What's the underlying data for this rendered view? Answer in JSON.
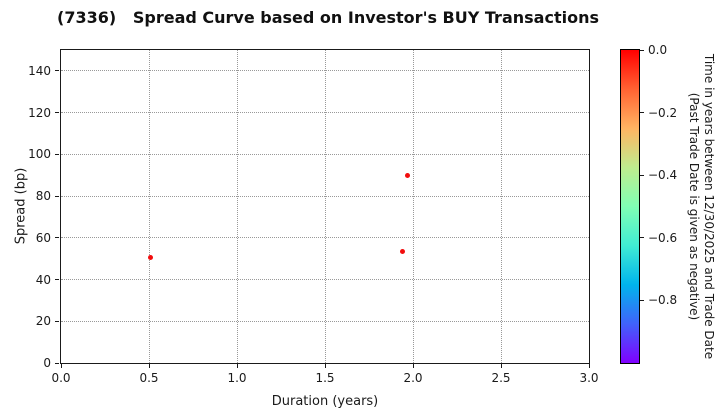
{
  "chart_data": {
    "type": "scatter",
    "title": "(7336)   Spread Curve based on Investor's BUY Transactions",
    "xlabel": "Duration (years)",
    "ylabel": "Spread (bp)",
    "xlim": [
      0.0,
      3.0
    ],
    "ylim": [
      0,
      150
    ],
    "grid": true,
    "legend_position": "none",
    "xticks": [
      0.0,
      0.5,
      1.0,
      1.5,
      2.0,
      2.5,
      3.0
    ],
    "xtick_labels": [
      "0.0",
      "0.5",
      "1.0",
      "1.5",
      "2.0",
      "2.5",
      "3.0"
    ],
    "yticks": [
      0,
      20,
      40,
      60,
      80,
      100,
      120,
      140
    ],
    "ytick_labels": [
      "0",
      "20",
      "40",
      "60",
      "80",
      "100",
      "120",
      "140"
    ],
    "points": [
      {
        "x": 0.51,
        "y": 50.5,
        "color_value": 0.0
      },
      {
        "x": 1.94,
        "y": 53.5,
        "color_value": 0.0
      },
      {
        "x": 1.97,
        "y": 90.0,
        "color_value": 0.0
      }
    ],
    "point_color": "#f20d0d",
    "colorbar": {
      "colormap": "rainbow",
      "range": [
        -1.0,
        0.0
      ],
      "ticks": [
        0.0,
        -0.2,
        -0.4,
        -0.6,
        -0.8
      ],
      "tick_labels": [
        "0.0",
        "−0.2",
        "−0.4",
        "−0.6",
        "−0.8"
      ],
      "label_line1": "Time in years between 12/30/2025 and Trade Date",
      "label_line2": "(Past Trade Date is given as negative)",
      "gradient_stops_top_to_bottom": [
        "#ff0000",
        "#ff6232",
        "#ffb462",
        "#bfec8e",
        "#80ffb4",
        "#40ecd4",
        "#00b4ec",
        "#4062fa",
        "#8000ff"
      ]
    }
  }
}
